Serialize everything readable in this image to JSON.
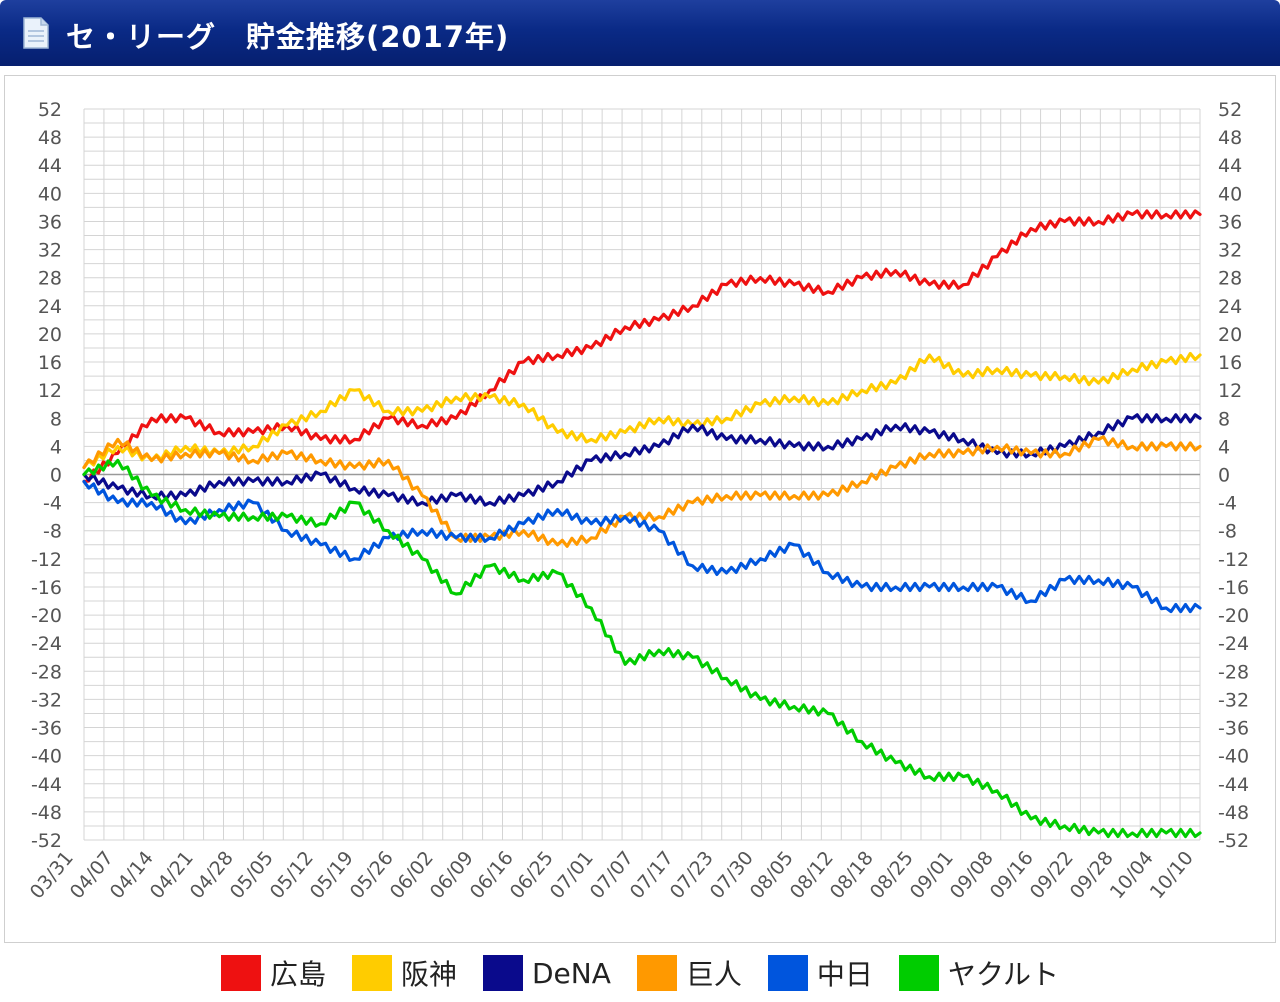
{
  "header": {
    "title": "セ・リーグ　貯金推移(2017年)",
    "icon": "document-icon"
  },
  "colors": {
    "header": "#0a2a86",
    "grid": "#d4d4d4",
    "zero_line": "#999999"
  },
  "chart_data": {
    "type": "line",
    "title": "セ・リーグ　貯金推移(2017年)",
    "xlabel": "",
    "ylabel": "",
    "ylim": [
      -52,
      52
    ],
    "y_ticks": [
      "52",
      "48",
      "44",
      "40",
      "36",
      "32",
      "28",
      "24",
      "20",
      "16",
      "12",
      "8",
      "4",
      "0",
      "-4",
      "-8",
      "-12",
      "-16",
      "-20",
      "-24",
      "-28",
      "-32",
      "-36",
      "-40",
      "-44",
      "-48",
      "-52"
    ],
    "x_tick_labels": [
      "03/31",
      "04/07",
      "04/14",
      "04/21",
      "04/28",
      "05/05",
      "05/12",
      "05/19",
      "05/26",
      "06/02",
      "06/09",
      "06/16",
      "06/25",
      "07/01",
      "07/07",
      "07/17",
      "07/23",
      "07/30",
      "08/05",
      "08/12",
      "08/18",
      "08/25",
      "09/01",
      "09/08",
      "09/16",
      "09/22",
      "09/28",
      "10/04",
      "10/10"
    ],
    "grid": true,
    "legend_position": "bottom",
    "series": [
      {
        "name": "広島",
        "color": "#ee1111",
        "values": [
          -1,
          3,
          8,
          8,
          6,
          6,
          7,
          5,
          5,
          8,
          7,
          8,
          12,
          16,
          17,
          18,
          21,
          22,
          24,
          27,
          28,
          27,
          26,
          28,
          29,
          27,
          27,
          31,
          35,
          36,
          36,
          37,
          37,
          37
        ]
      },
      {
        "name": "阪神",
        "color": "#ffcc00",
        "values": [
          1,
          4,
          2,
          4,
          3,
          4,
          7,
          9,
          12,
          9,
          9,
          11,
          11,
          10,
          6,
          5,
          6,
          8,
          7,
          8,
          10,
          11,
          10,
          12,
          13,
          17,
          14,
          15,
          14,
          14,
          13,
          15,
          16,
          17
        ]
      },
      {
        "name": "DeNA",
        "color": "#0a0a8c",
        "values": [
          0,
          -2,
          -3,
          -3,
          -1,
          -1,
          -1,
          0,
          -2,
          -3,
          -4,
          -3,
          -4,
          -3,
          -1,
          2,
          3,
          4,
          7,
          5,
          5,
          4,
          4,
          5,
          7,
          6,
          5,
          3,
          3,
          4,
          6,
          8,
          8,
          8
        ]
      },
      {
        "name": "巨人",
        "color": "#ff9900",
        "values": [
          1,
          5,
          2,
          3,
          3,
          2,
          3,
          2,
          1,
          2,
          -3,
          -9,
          -9,
          -8,
          -10,
          -9,
          -6,
          -6,
          -4,
          -3,
          -3,
          -3,
          -3,
          -1,
          1,
          3,
          3,
          4,
          3,
          3,
          5,
          4,
          4,
          4
        ]
      },
      {
        "name": "中日",
        "color": "#0055dd",
        "values": [
          -1,
          -4,
          -4,
          -7,
          -5,
          -4,
          -8,
          -10,
          -12,
          -9,
          -8,
          -9,
          -9,
          -7,
          -5,
          -7,
          -6,
          -8,
          -13,
          -14,
          -12,
          -10,
          -14,
          -16,
          -16,
          -16,
          -16,
          -16,
          -18,
          -15,
          -15,
          -16,
          -19,
          -19
        ]
      },
      {
        "name": "ヤクルト",
        "color": "#00cc00",
        "values": [
          0,
          2,
          -3,
          -5,
          -6,
          -6,
          -6,
          -7,
          -4,
          -8,
          -12,
          -17,
          -13,
          -15,
          -14,
          -19,
          -27,
          -25,
          -26,
          -29,
          -32,
          -33,
          -34,
          -38,
          -41,
          -43,
          -43,
          -45,
          -49,
          -50,
          -51,
          -51,
          -51,
          -51
        ]
      }
    ]
  },
  "legend": [
    {
      "label": "広島",
      "color": "#ee1111"
    },
    {
      "label": "阪神",
      "color": "#ffcc00"
    },
    {
      "label": "DeNA",
      "color": "#0a0a8c"
    },
    {
      "label": "巨人",
      "color": "#ff9900"
    },
    {
      "label": "中日",
      "color": "#0055dd"
    },
    {
      "label": "ヤクルト",
      "color": "#00cc00"
    }
  ]
}
